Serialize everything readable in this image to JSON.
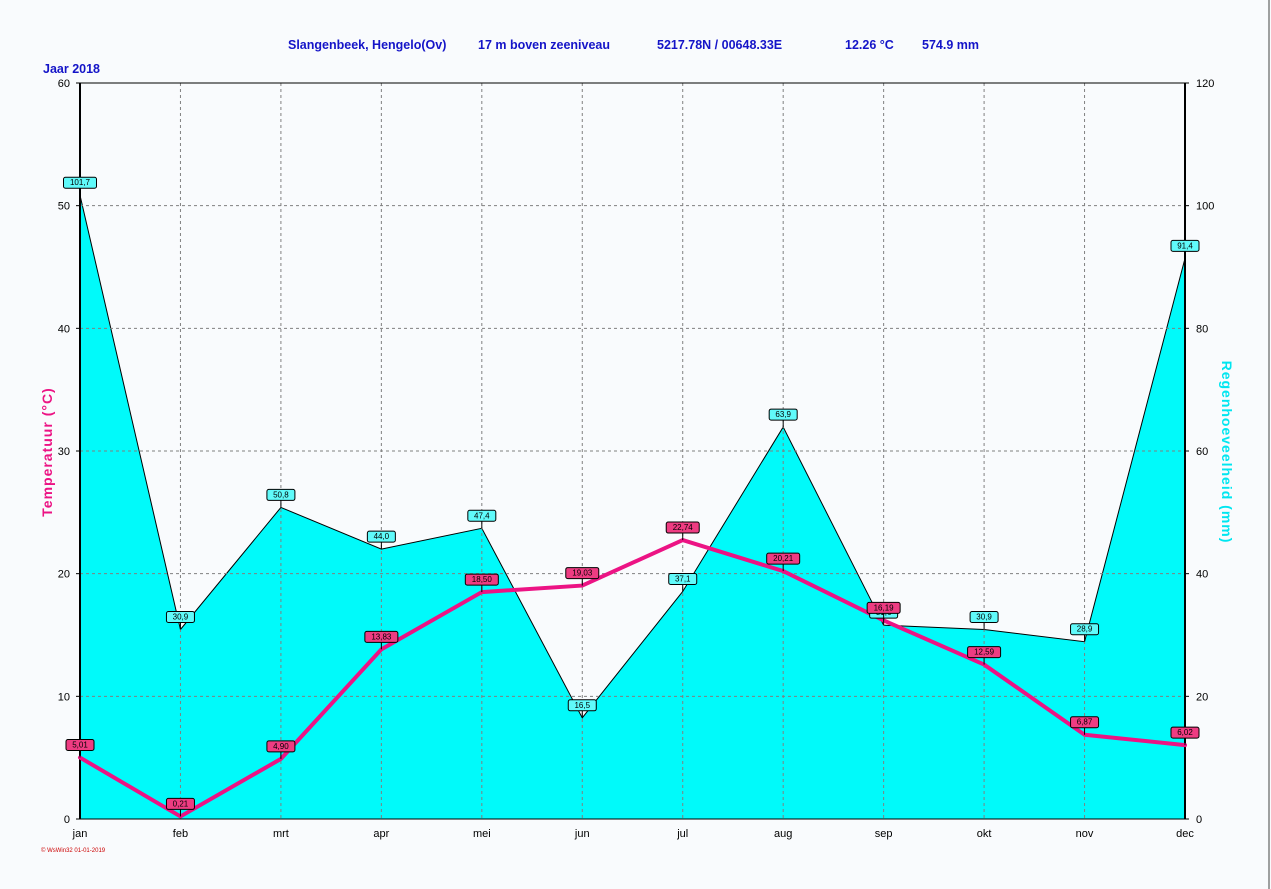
{
  "header": {
    "station": "Slangenbeek, Hengelo(Ov)",
    "elevation": "17 m boven zeeniveau",
    "coords": "5217.78N / 00648.33E",
    "mean_temp": "12.26 °C",
    "total_rain": "574.9 mm",
    "year": "Jaar  2018"
  },
  "footer": {
    "credit": "© WsWin32  01-01-2019"
  },
  "colors": {
    "temp_line": "#ec1384",
    "temp_label": "#ee3c82",
    "rain_fill": "#00fafa",
    "rain_label": "#60fafa",
    "header_text": "#1414c8",
    "grid": "#808080"
  },
  "chart_data": {
    "type": "area",
    "title": "",
    "categories": [
      "jan",
      "feb",
      "mrt",
      "apr",
      "mei",
      "jun",
      "jul",
      "aug",
      "sep",
      "okt",
      "nov",
      "dec"
    ],
    "y_left": {
      "label": "Temperatuur  (°C)",
      "range": [
        0,
        60
      ],
      "ticks": [
        "0",
        "10",
        "20",
        "30",
        "40",
        "50",
        "60"
      ]
    },
    "y_right": {
      "label": "Regenhoeveelheid  (mm)",
      "range": [
        0,
        120
      ],
      "ticks": [
        "0",
        "20",
        "40",
        "60",
        "80",
        "100",
        "120"
      ]
    },
    "grid": true,
    "series": [
      {
        "name": "Temperatuur",
        "kind": "line",
        "axis": "left",
        "values": [
          5.01,
          0.21,
          4.9,
          13.83,
          18.5,
          19.03,
          22.74,
          20.21,
          16.19,
          12.59,
          6.87,
          6.02
        ],
        "labels": [
          "5,01",
          "0,21",
          "4,90",
          "13,83",
          "18,50",
          "19,03",
          "22,74",
          "20,21",
          "16,19",
          "12,59",
          "6,87",
          "6,02"
        ]
      },
      {
        "name": "Regenhoeveelheid",
        "kind": "area",
        "axis": "right",
        "values": [
          101.7,
          30.9,
          50.8,
          44.0,
          47.4,
          16.5,
          37.1,
          63.9,
          31.6,
          30.9,
          28.9,
          91.4
        ],
        "labels": [
          "101,7",
          "30,9",
          "50,8",
          "44,0",
          "47,4",
          "16,5",
          "37,1",
          "63,9",
          "31,6",
          "30,9",
          "28,9",
          "91,4"
        ]
      }
    ]
  }
}
